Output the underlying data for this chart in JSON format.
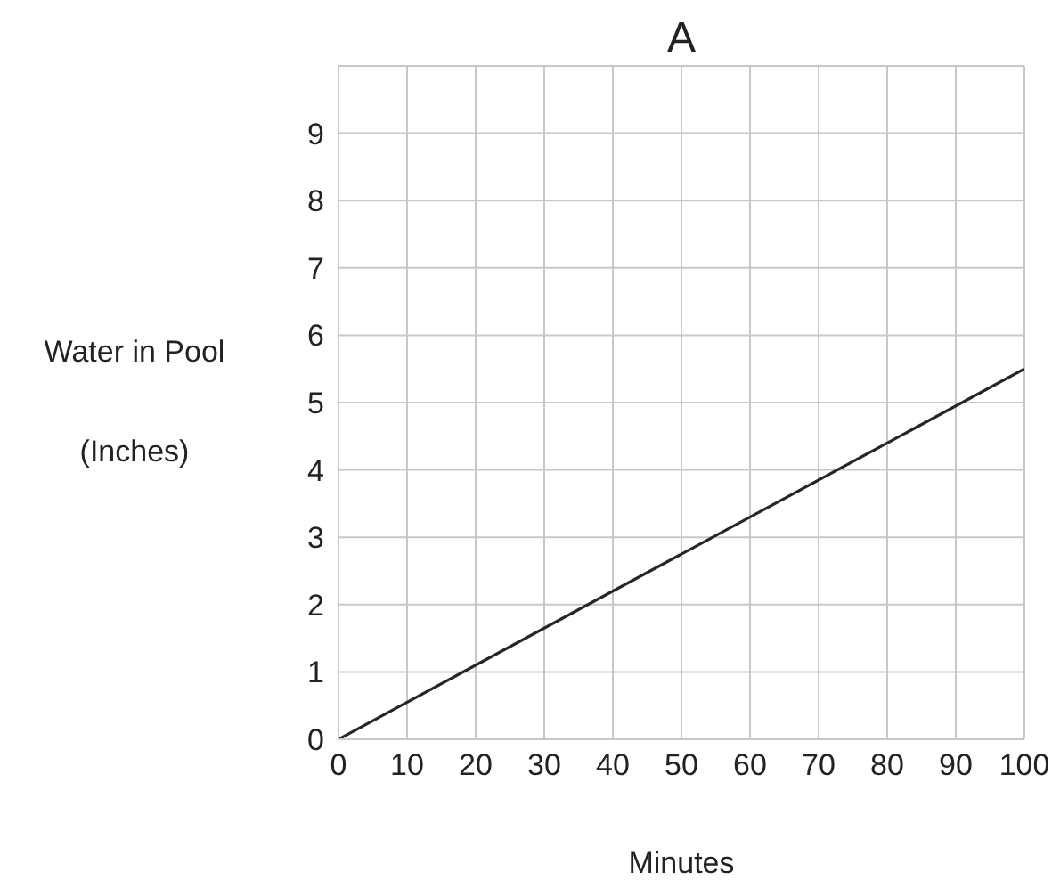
{
  "chart_data": {
    "type": "line",
    "title": "A",
    "xlabel": "Minutes",
    "ylabel": "Water in Pool\n(Inches)",
    "x": [
      0,
      100
    ],
    "series": [
      {
        "color": "#262626",
        "values": [
          0,
          5.5
        ]
      }
    ],
    "xlim": [
      0,
      100
    ],
    "xticks": [
      0,
      10,
      20,
      30,
      40,
      50,
      60,
      70,
      80,
      90,
      100
    ],
    "ylim": [
      0,
      10
    ],
    "yticks": [
      0,
      1,
      2,
      3,
      4,
      5,
      6,
      7,
      8,
      9,
      {
        "value": 10,
        "label": null
      }
    ],
    "grid": true,
    "marker": "none",
    "line_style": "solid"
  }
}
